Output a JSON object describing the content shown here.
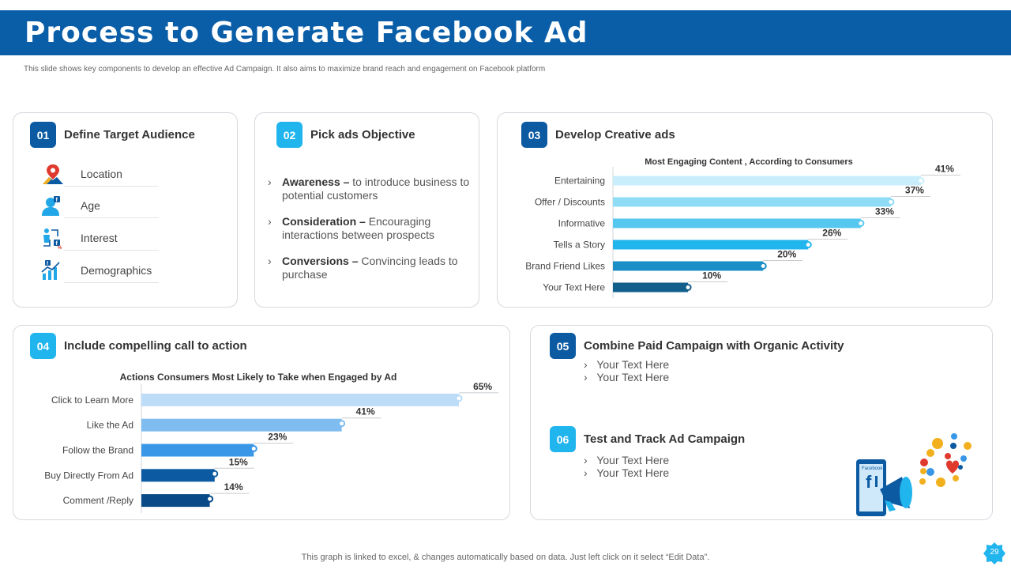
{
  "header": {
    "title": "Process to Generate Facebook Ad",
    "subtitle": "This slide shows key components to develop an effective Ad Campaign. It also aims to maximize brand reach and engagement on Facebook platform"
  },
  "colors": {
    "brand": "#0a5ea8",
    "dark_badge": "#0b5aa2",
    "light_badge": "#21b5ee"
  },
  "card1": {
    "number": "01",
    "title": "Define Target Audience",
    "items": [
      {
        "label": "Location",
        "icon": "location-pin-icon"
      },
      {
        "label": "Age",
        "icon": "user-icon"
      },
      {
        "label": "Interest",
        "icon": "interest-icon"
      },
      {
        "label": "Demographics",
        "icon": "demographics-chart-icon"
      }
    ]
  },
  "card2": {
    "number": "02",
    "title": "Pick ads Objective",
    "items": [
      {
        "term": "Awareness –",
        "text": "to introduce business to potential customers"
      },
      {
        "term": "Consideration –",
        "text": "Encouraging interactions between prospects"
      },
      {
        "term": "Conversions –",
        "text": "Convincing leads to purchase"
      }
    ]
  },
  "card3": {
    "number": "03",
    "title": "Develop Creative ads"
  },
  "card4": {
    "number": "04",
    "title": "Include compelling call to action"
  },
  "card5": {
    "step5": {
      "number": "05",
      "title": "Combine Paid Campaign with Organic Activity",
      "bullets": [
        "Your Text Here",
        "Your Text Here"
      ]
    },
    "step6": {
      "number": "06",
      "title": "Test and Track Ad Campaign",
      "bullets": [
        "Your Text Here",
        "Your Text Here"
      ]
    },
    "illustration": {
      "phone_label": "Facebook",
      "icon": "facebook-megaphone-icon"
    }
  },
  "chart_data": [
    {
      "type": "bar",
      "orientation": "horizontal",
      "title": "Most Engaging Content , According to Consumers",
      "categories": [
        "Entertaining",
        "Offer / Discounts",
        "Informative",
        "Tells a Story",
        "Brand Friend Likes",
        "Your Text Here"
      ],
      "values": [
        41,
        37,
        33,
        26,
        20,
        10
      ],
      "labels": [
        "41%",
        "37%",
        "33%",
        "26%",
        "20%",
        "10%"
      ],
      "unit": "%",
      "xlim": [
        0,
        45
      ],
      "colors": [
        "#c9eefb",
        "#8fdcf6",
        "#56c8f0",
        "#21b5ee",
        "#1a8ec6",
        "#125f8c"
      ]
    },
    {
      "type": "bar",
      "orientation": "horizontal",
      "title": "Actions Consumers Most Likely to Take when Engaged by Ad",
      "categories": [
        "Click to Learn More",
        "Like the Ad",
        "Follow the Brand",
        "Buy Directly From Ad",
        "Comment /Reply"
      ],
      "values": [
        65,
        41,
        23,
        15,
        14
      ],
      "labels": [
        "65%",
        "41%",
        "23%",
        "15%",
        "14%"
      ],
      "unit": "%",
      "xlim": [
        0,
        70
      ],
      "colors": [
        "#bcdcf7",
        "#7fbdf0",
        "#3a97e8",
        "#0b5aa2",
        "#0a4a86"
      ]
    }
  ],
  "footer": {
    "note": "This graph is linked to excel, & changes automatically based on data. Just left click on it select “Edit Data”.",
    "page": "29"
  }
}
